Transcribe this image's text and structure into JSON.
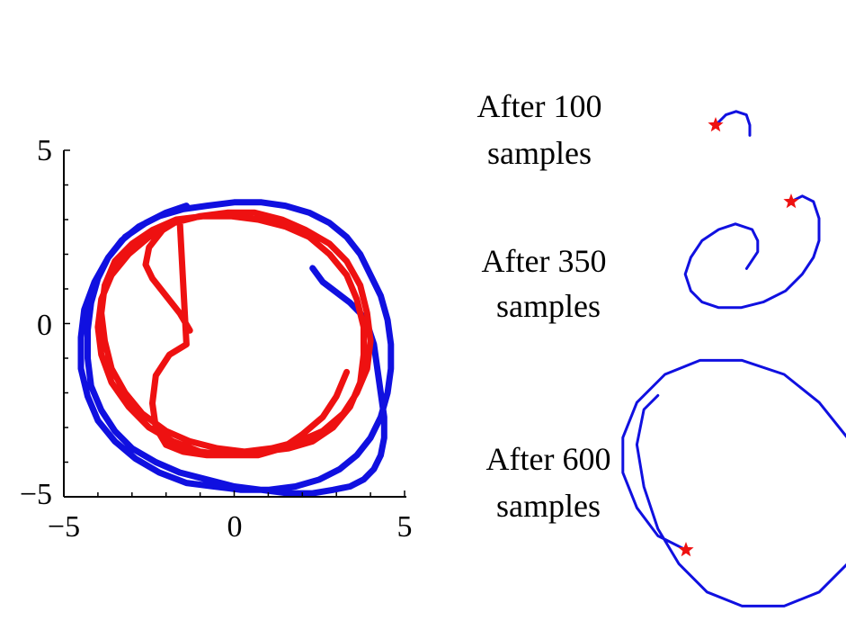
{
  "colors": {
    "blue": "#1010e0",
    "red": "#ee1111",
    "axis": "#000000"
  },
  "chart_data": [
    {
      "type": "line",
      "title": "",
      "xlabel": "",
      "ylabel": "",
      "xlim": [
        -5,
        5
      ],
      "ylim": [
        -5,
        5
      ],
      "grid": false,
      "x_tick_labels": [
        "−5",
        "0",
        "5"
      ],
      "y_tick_labels": [
        "−5",
        "0",
        "5"
      ],
      "x_tick_values": [
        -5,
        0,
        5
      ],
      "y_tick_values": [
        -5,
        0,
        5
      ],
      "series": [
        {
          "color": "#1010e0",
          "x": [
            2.3,
            2.6,
            3.0,
            3.4,
            3.7,
            3.9,
            4.1,
            4.2,
            4.3,
            4.4,
            4.4,
            4.3,
            4.1,
            3.8,
            3.4,
            2.9,
            2.3,
            1.6,
            0.8,
            0.0,
            -0.8,
            -1.6,
            -2.3,
            -3.0,
            -3.5,
            -3.9,
            -4.2,
            -4.3,
            -4.3,
            -4.2,
            -4.0,
            -3.7,
            -3.3,
            -2.8,
            -2.2,
            -1.5,
            -0.8,
            0.0,
            0.8,
            1.5,
            2.2,
            2.8,
            3.3,
            3.7,
            4.0,
            4.3,
            4.5,
            4.6,
            4.6,
            4.5,
            4.3,
            4.0,
            3.6,
            3.1,
            2.5,
            1.8,
            1.0,
            0.2,
            -0.6,
            -1.4,
            -2.2,
            -2.9,
            -3.5,
            -4.0,
            -4.3,
            -4.5,
            -4.5,
            -4.4,
            -4.1,
            -3.7,
            -3.2,
            -2.6,
            -2.0,
            -1.4
          ],
          "y": [
            1.6,
            1.2,
            0.9,
            0.6,
            0.3,
            0.0,
            -0.6,
            -1.3,
            -2.0,
            -2.7,
            -3.3,
            -3.8,
            -4.2,
            -4.5,
            -4.7,
            -4.8,
            -4.9,
            -4.9,
            -4.8,
            -4.7,
            -4.5,
            -4.3,
            -4.0,
            -3.6,
            -3.1,
            -2.5,
            -1.8,
            -1.0,
            -0.2,
            0.6,
            1.3,
            1.9,
            2.4,
            2.8,
            3.1,
            3.3,
            3.4,
            3.5,
            3.5,
            3.4,
            3.2,
            2.9,
            2.5,
            2.0,
            1.4,
            0.8,
            0.1,
            -0.6,
            -1.3,
            -2.0,
            -2.7,
            -3.3,
            -3.8,
            -4.2,
            -4.5,
            -4.7,
            -4.8,
            -4.8,
            -4.7,
            -4.6,
            -4.3,
            -3.9,
            -3.4,
            -2.8,
            -2.1,
            -1.3,
            -0.4,
            0.4,
            1.2,
            1.9,
            2.5,
            2.9,
            3.2,
            3.4
          ]
        },
        {
          "color": "#ee1111",
          "x": [
            -1.3,
            -1.6,
            -2.0,
            -2.4,
            -2.6,
            -2.5,
            -2.1,
            -1.6,
            -1.4,
            -1.9,
            -2.3,
            -2.4,
            -2.3,
            -2.0,
            -1.5,
            -0.8,
            0.0,
            0.8,
            1.6,
            2.3,
            2.9,
            3.4,
            3.7,
            3.8,
            3.8,
            3.6,
            3.3,
            2.8,
            2.2,
            1.5,
            0.7,
            -0.1,
            -0.9,
            -1.7,
            -2.4,
            -3.0,
            -3.5,
            -3.8,
            -3.9,
            -3.8,
            -3.6,
            -3.2,
            -2.7,
            -2.0,
            -1.3,
            -0.5,
            0.3,
            1.1,
            1.9,
            2.6,
            3.2,
            3.6,
            3.9,
            4.0,
            3.9,
            3.7,
            3.3,
            2.8,
            2.1,
            1.4,
            0.6,
            -0.2,
            -1.0,
            -1.8,
            -2.5,
            -3.1,
            -3.6,
            -3.9,
            -4.0,
            -3.9,
            -3.6,
            -3.1,
            -2.5,
            -1.8,
            -1.0,
            -0.2,
            0.7,
            1.4,
            2.0,
            2.6,
            3.0,
            3.3
          ],
          "y": [
            -0.2,
            0.3,
            0.8,
            1.3,
            1.7,
            2.2,
            2.7,
            3.0,
            -0.6,
            -0.9,
            -1.5,
            -2.3,
            -3.0,
            -3.5,
            -3.7,
            -3.8,
            -3.8,
            -3.7,
            -3.6,
            -3.4,
            -3.0,
            -2.4,
            -1.7,
            -0.9,
            -0.1,
            0.7,
            1.4,
            2.0,
            2.5,
            2.8,
            3.0,
            3.1,
            3.1,
            3.0,
            2.7,
            2.3,
            1.8,
            1.1,
            0.3,
            -0.5,
            -1.3,
            -2.0,
            -2.6,
            -3.1,
            -3.4,
            -3.6,
            -3.7,
            -3.6,
            -3.4,
            -3.1,
            -2.6,
            -2.0,
            -1.3,
            -0.5,
            0.3,
            1.1,
            1.8,
            2.3,
            2.7,
            3.0,
            3.2,
            3.2,
            3.1,
            2.9,
            2.5,
            2.0,
            1.4,
            0.7,
            -0.1,
            -0.9,
            -1.7,
            -2.4,
            -3.0,
            -3.4,
            -3.7,
            -3.8,
            -3.8,
            -3.6,
            -3.2,
            -2.7,
            -2.1,
            -1.4
          ]
        }
      ]
    },
    {
      "type": "line",
      "series": [
        {
          "color": "#1010e0",
          "x": [
            0.0,
            0.3,
            0.6,
            0.9,
            1.0,
            1.0
          ],
          "y": [
            0.0,
            0.3,
            0.4,
            0.3,
            0.0,
            -0.3
          ]
        }
      ],
      "markers": [
        {
          "x": 0.0,
          "y": 0.0,
          "color": "#ee1111",
          "symbol": "star"
        }
      ]
    },
    {
      "type": "line",
      "series": [
        {
          "color": "#1010e0",
          "x": [
            0.0,
            0.2,
            0.4,
            0.5,
            0.5,
            0.4,
            0.2,
            -0.1,
            -0.5,
            -0.9,
            -1.3,
            -1.6,
            -1.8,
            -1.9,
            -1.8,
            -1.6,
            -1.3,
            -1.0,
            -0.7,
            -0.6,
            -0.6,
            -0.8
          ],
          "y": [
            0.0,
            0.1,
            0.0,
            -0.3,
            -0.7,
            -1.0,
            -1.3,
            -1.6,
            -1.8,
            -1.9,
            -1.9,
            -1.8,
            -1.6,
            -1.3,
            -1.0,
            -0.7,
            -0.5,
            -0.4,
            -0.5,
            -0.7,
            -0.9,
            -1.2
          ]
        }
      ],
      "markers": [
        {
          "x": 0.0,
          "y": 0.0,
          "color": "#ee1111",
          "symbol": "star"
        }
      ]
    },
    {
      "type": "line",
      "series": [
        {
          "color": "#1010e0",
          "x": [
            0.0,
            -0.4,
            -0.7,
            -0.9,
            -0.9,
            -0.7,
            -0.3,
            0.2,
            0.8,
            1.4,
            1.9,
            2.3,
            2.5,
            2.5,
            2.3,
            1.9,
            1.4,
            0.8,
            0.3,
            -0.1,
            -0.4,
            -0.6,
            -0.7,
            -0.6,
            -0.4
          ],
          "y": [
            0.0,
            0.2,
            0.6,
            1.1,
            1.6,
            2.1,
            2.5,
            2.7,
            2.7,
            2.5,
            2.1,
            1.6,
            1.0,
            0.4,
            -0.2,
            -0.6,
            -0.8,
            -0.8,
            -0.6,
            -0.2,
            0.3,
            0.9,
            1.5,
            2.0,
            2.2
          ]
        }
      ],
      "markers": [
        {
          "x": 0.0,
          "y": 0.0,
          "color": "#ee1111",
          "symbol": "star"
        }
      ]
    }
  ],
  "panels": [
    {
      "line1": "After 100",
      "line2": "samples"
    },
    {
      "line1": "After 350",
      "line2": "samples"
    },
    {
      "line1": "After 600",
      "line2": "samples"
    }
  ]
}
